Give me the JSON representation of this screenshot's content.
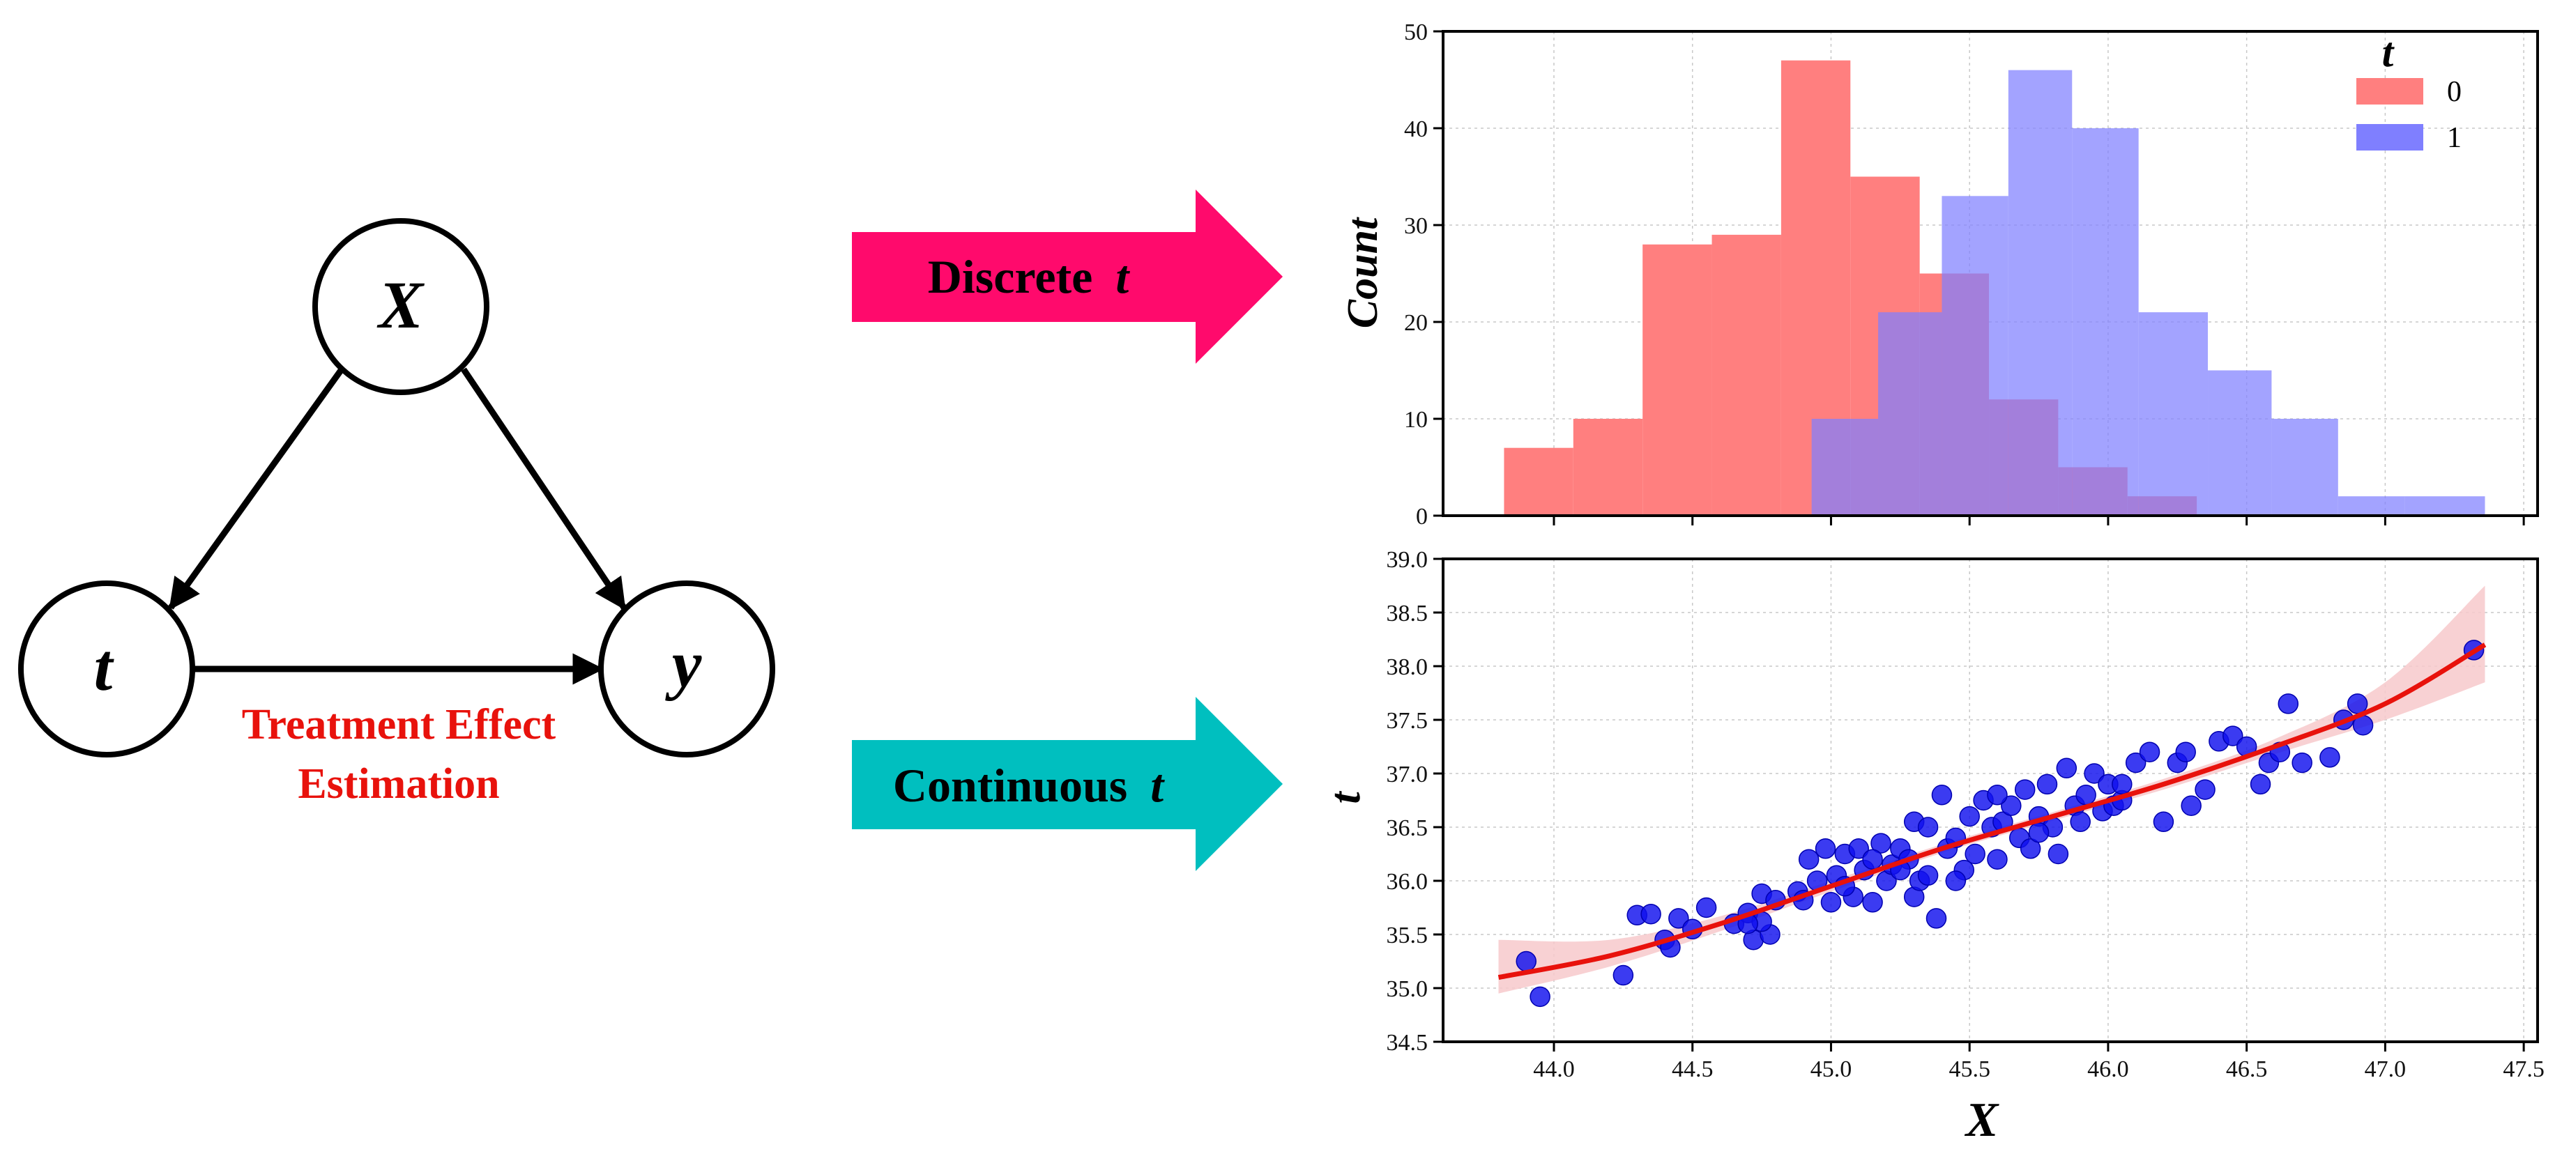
{
  "dag": {
    "nodes": {
      "confounder": "X",
      "treatment": "t",
      "outcome": "y"
    },
    "caption_line1": "Treatment Effect",
    "caption_line2": "Estimation",
    "caption_color": "#e8120c"
  },
  "arrows": {
    "discrete": {
      "label": "Discrete",
      "var": "t",
      "color": "#ff0a6c"
    },
    "continuous": {
      "label": "Continuous",
      "var": "t",
      "color": "#00bfbf"
    }
  },
  "chart_data": [
    {
      "type": "bar",
      "subtype": "histogram",
      "ylabel": "Count",
      "ylim": [
        0,
        50
      ],
      "yticks": [
        "0",
        "10",
        "20",
        "30",
        "40",
        "50"
      ],
      "xlim": [
        43.6,
        47.55
      ],
      "x_tick_values": [
        44.0,
        44.5,
        45.0,
        45.5,
        46.0,
        46.5,
        47.0,
        47.5
      ],
      "legend_title": "t",
      "legend_position": "top-right",
      "grid": true,
      "series": [
        {
          "name": "0",
          "color": "#ff7f7f",
          "bin_edges": [
            43.82,
            44.07,
            44.32,
            44.57,
            44.82,
            45.07,
            45.32,
            45.57,
            45.82,
            46.07,
            46.32
          ],
          "counts": [
            7,
            10,
            28,
            29,
            47,
            35,
            25,
            12,
            5,
            2
          ]
        },
        {
          "name": "1",
          "color": "#7f7fff",
          "bin_edges": [
            44.93,
            45.17,
            45.4,
            45.64,
            45.87,
            46.11,
            46.36,
            46.59,
            46.83,
            47.07,
            47.36
          ],
          "counts": [
            10,
            21,
            33,
            46,
            40,
            21,
            15,
            10,
            2,
            2
          ]
        }
      ]
    },
    {
      "type": "scatter",
      "xlabel": "X",
      "ylabel": "t",
      "xlim": [
        43.6,
        47.55
      ],
      "ylim": [
        34.5,
        39.0
      ],
      "xticks": [
        "44.0",
        "44.5",
        "45.0",
        "45.5",
        "46.0",
        "46.5",
        "47.0",
        "47.5"
      ],
      "yticks": [
        "34.5",
        "35.0",
        "35.5",
        "36.0",
        "36.5",
        "37.0",
        "37.5",
        "38.0",
        "38.5",
        "39.0"
      ],
      "grid": true,
      "point_color": "#1010ee",
      "fit_color": "#e8120c",
      "band_color": "#f7c9cb",
      "fit_line": {
        "x": [
          43.8,
          44.2,
          44.6,
          45.0,
          45.4,
          45.8,
          46.2,
          46.6,
          47.0,
          47.36
        ],
        "y": [
          35.1,
          35.3,
          35.6,
          35.95,
          36.3,
          36.6,
          36.9,
          37.25,
          37.65,
          38.2
        ]
      },
      "confidence_band": {
        "x": [
          43.8,
          44.2,
          44.6,
          45.0,
          45.4,
          45.8,
          46.2,
          46.6,
          47.0,
          47.36
        ],
        "lower": [
          34.95,
          35.2,
          35.53,
          35.9,
          36.26,
          36.56,
          36.85,
          37.18,
          37.5,
          37.85
        ],
        "upper": [
          35.45,
          35.45,
          35.67,
          36.0,
          36.34,
          36.64,
          36.95,
          37.32,
          37.85,
          38.75
        ]
      },
      "points": [
        [
          43.9,
          35.25
        ],
        [
          43.95,
          34.92
        ],
        [
          44.25,
          35.12
        ],
        [
          44.3,
          35.68
        ],
        [
          44.35,
          35.69
        ],
        [
          44.4,
          35.45
        ],
        [
          44.42,
          35.38
        ],
        [
          44.45,
          35.65
        ],
        [
          44.5,
          35.55
        ],
        [
          44.55,
          35.75
        ],
        [
          44.65,
          35.6
        ],
        [
          44.7,
          35.7
        ],
        [
          44.72,
          35.45
        ],
        [
          44.75,
          35.88
        ],
        [
          44.78,
          35.5
        ],
        [
          44.8,
          35.82
        ],
        [
          44.75,
          35.62
        ],
        [
          44.88,
          35.9
        ],
        [
          44.9,
          35.82
        ],
        [
          44.92,
          36.2
        ],
        [
          44.95,
          36.0
        ],
        [
          44.98,
          36.3
        ],
        [
          45.0,
          35.8
        ],
        [
          45.02,
          36.05
        ],
        [
          45.05,
          36.25
        ],
        [
          45.08,
          35.85
        ],
        [
          45.1,
          36.3
        ],
        [
          45.12,
          36.1
        ],
        [
          45.15,
          35.8
        ],
        [
          45.18,
          36.35
        ],
        [
          45.2,
          36.0
        ],
        [
          45.22,
          36.15
        ],
        [
          45.25,
          36.3
        ],
        [
          45.28,
          36.2
        ],
        [
          45.3,
          36.55
        ],
        [
          45.3,
          35.85
        ],
        [
          45.32,
          36.0
        ],
        [
          45.35,
          36.5
        ],
        [
          45.35,
          36.05
        ],
        [
          45.38,
          35.65
        ],
        [
          45.4,
          36.8
        ],
        [
          45.42,
          36.3
        ],
        [
          45.45,
          36.4
        ],
        [
          45.48,
          36.1
        ],
        [
          45.5,
          36.6
        ],
        [
          45.52,
          36.25
        ],
        [
          45.55,
          36.75
        ],
        [
          45.58,
          36.5
        ],
        [
          45.6,
          36.2
        ],
        [
          45.62,
          36.55
        ],
        [
          45.65,
          36.7
        ],
        [
          45.68,
          36.4
        ],
        [
          45.7,
          36.85
        ],
        [
          45.72,
          36.3
        ],
        [
          45.75,
          36.6
        ],
        [
          45.78,
          36.9
        ],
        [
          45.8,
          36.5
        ],
        [
          45.82,
          36.25
        ],
        [
          45.85,
          37.05
        ],
        [
          45.88,
          36.7
        ],
        [
          45.9,
          36.55
        ],
        [
          45.92,
          36.8
        ],
        [
          45.95,
          37.0
        ],
        [
          45.98,
          36.65
        ],
        [
          46.0,
          36.9
        ],
        [
          46.02,
          36.7
        ],
        [
          46.05,
          36.75
        ],
        [
          46.1,
          37.1
        ],
        [
          46.15,
          37.2
        ],
        [
          46.2,
          36.55
        ],
        [
          46.25,
          37.1
        ],
        [
          46.28,
          37.2
        ],
        [
          46.3,
          36.7
        ],
        [
          46.35,
          36.85
        ],
        [
          46.4,
          37.3
        ],
        [
          46.45,
          37.35
        ],
        [
          46.5,
          37.25
        ],
        [
          46.55,
          36.9
        ],
        [
          46.58,
          37.1
        ],
        [
          46.62,
          37.2
        ],
        [
          46.65,
          37.65
        ],
        [
          46.7,
          37.1
        ],
        [
          46.8,
          37.15
        ],
        [
          46.85,
          37.5
        ],
        [
          46.9,
          37.65
        ],
        [
          46.92,
          37.45
        ],
        [
          47.32,
          38.15
        ],
        [
          44.7,
          35.6
        ],
        [
          45.15,
          36.2
        ],
        [
          45.45,
          36.0
        ],
        [
          45.75,
          36.45
        ],
        [
          46.05,
          36.9
        ],
        [
          45.6,
          36.8
        ],
        [
          45.25,
          36.1
        ],
        [
          45.05,
          35.95
        ]
      ]
    }
  ]
}
